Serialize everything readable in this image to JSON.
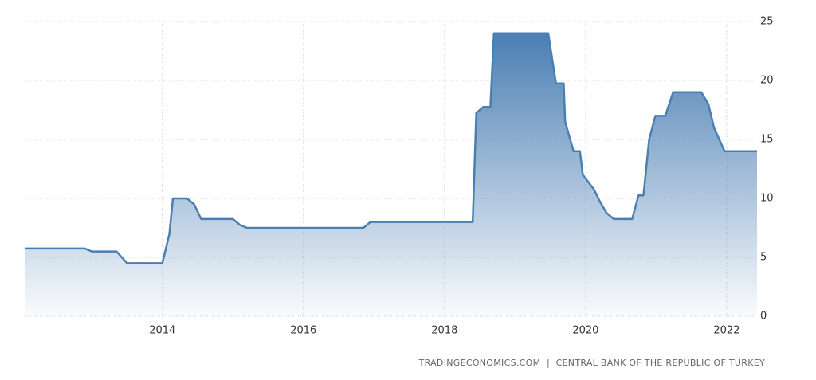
{
  "chart_data": {
    "type": "area",
    "x": [
      2012.06,
      2012.9,
      2013.0,
      2013.35,
      2013.5,
      2014.0,
      2014.1,
      2014.15,
      2014.35,
      2014.45,
      2014.55,
      2015.0,
      2015.1,
      2015.2,
      2016.85,
      2016.95,
      2018.4,
      2018.45,
      2018.55,
      2018.65,
      2018.7,
      2019.47,
      2019.58,
      2019.69,
      2019.71,
      2019.83,
      2019.92,
      2019.96,
      2020.12,
      2020.2,
      2020.3,
      2020.4,
      2020.66,
      2020.75,
      2020.82,
      2020.9,
      2020.99,
      2021.13,
      2021.24,
      2021.64,
      2021.74,
      2021.82,
      2021.97,
      2022.43
    ],
    "values": [
      5.75,
      5.75,
      5.5,
      5.5,
      4.5,
      4.5,
      7,
      10,
      10,
      9.5,
      8.25,
      8.25,
      7.75,
      7.5,
      7.5,
      8,
      8,
      17.25,
      17.75,
      17.75,
      24,
      24,
      19.75,
      19.75,
      16.5,
      14,
      14,
      12,
      10.75,
      9.75,
      8.75,
      8.25,
      8.25,
      10.25,
      10.25,
      15,
      17,
      17,
      19,
      19,
      18,
      16,
      14,
      14
    ],
    "color": "#4a7fb3",
    "xlim": [
      2012.06,
      2022.43
    ],
    "xticks": [
      2014,
      2016,
      2018,
      2020,
      2022
    ],
    "ylim": [
      0,
      25
    ],
    "yticks": [
      0,
      5,
      10,
      15,
      20,
      25
    ],
    "grid": true,
    "source": "TRADINGECONOMICS.COM  |  CENTRAL BANK OF THE REPUBLIC OF TURKEY"
  }
}
